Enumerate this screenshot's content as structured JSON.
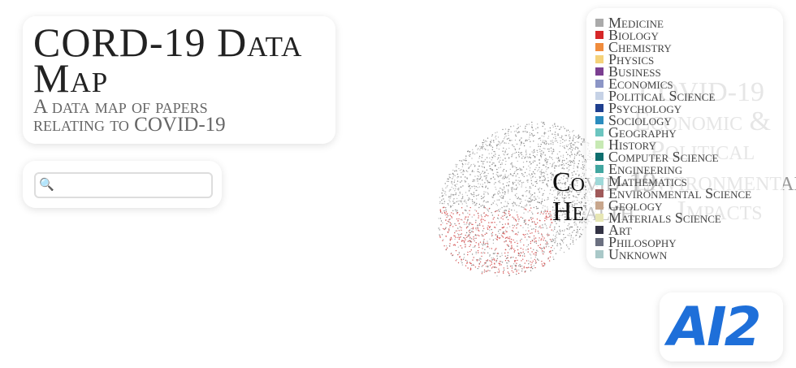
{
  "header": {
    "title": "CORD-19 Data Map",
    "subtitle": "A data map of papers relating to COVID-19"
  },
  "search": {
    "icon": "🔍"
  },
  "map_labels": [
    {
      "lines": [
        "COVID-19",
        "Economic &",
        "Political"
      ],
      "color": "#9a9a9a"
    },
    {
      "lines": [
        "Environmental",
        "Impacts"
      ],
      "color": "#9a9a9a"
    },
    {
      "lines": [
        "Covid-19",
        "Health"
      ],
      "color": "#111111"
    }
  ],
  "legend": [
    {
      "name": "Medicine",
      "color": "#aaaaaa"
    },
    {
      "name": "Biology",
      "color": "#d62728"
    },
    {
      "name": "Chemistry",
      "color": "#f08c3c"
    },
    {
      "name": "Physics",
      "color": "#f5d27a"
    },
    {
      "name": "Business",
      "color": "#7b3f91"
    },
    {
      "name": "Economics",
      "color": "#8c96c6"
    },
    {
      "name": "Political Science",
      "color": "#c6d2e6"
    },
    {
      "name": "Psychology",
      "color": "#1f3f8f"
    },
    {
      "name": "Sociology",
      "color": "#2b8cbe"
    },
    {
      "name": "Geography",
      "color": "#6cc5c0"
    },
    {
      "name": "History",
      "color": "#c7e9b4"
    },
    {
      "name": "Computer Science",
      "color": "#0e6e6e"
    },
    {
      "name": "Engineering",
      "color": "#41a6a0"
    },
    {
      "name": "Mathematics",
      "color": "#9fd8d8"
    },
    {
      "name": "Environmental Science",
      "color": "#a05a5a"
    },
    {
      "name": "Geology",
      "color": "#c8a68c"
    },
    {
      "name": "Materials Science",
      "color": "#e6e6b4"
    },
    {
      "name": "Art",
      "color": "#333344"
    },
    {
      "name": "Philosophy",
      "color": "#6b7080"
    },
    {
      "name": "Unknown",
      "color": "#a9c8c8"
    }
  ],
  "logo": {
    "text": "AI2"
  }
}
